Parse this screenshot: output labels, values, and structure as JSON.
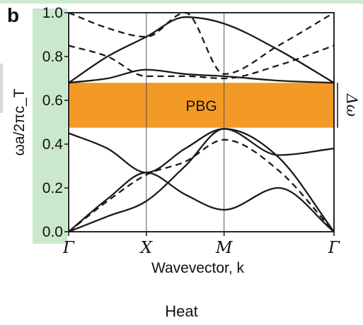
{
  "panel_label": "b",
  "caption": "Heat",
  "colors": {
    "bandgap": "#f39a26",
    "axis_bg": "#c9e8cc",
    "curves": "#1a1a1a"
  },
  "chart_data": {
    "type": "line",
    "title": "",
    "xlabel": "Wavevector, k",
    "ylabel": "ωa/2πc_T",
    "ylim": [
      0.0,
      1.0
    ],
    "yticks": [
      "0.0",
      "0.2",
      "0.4",
      "0.6",
      "0.8",
      "1.0"
    ],
    "k_points": [
      "Γ",
      "X",
      "M",
      "Γ"
    ],
    "k_positions": [
      0,
      1,
      2,
      3.4142
    ],
    "grid": "vertical lines at X and M",
    "band_gap": {
      "label": "PBG",
      "range": [
        0.475,
        0.68
      ],
      "side_label": "Δω"
    },
    "series": [
      {
        "style": "solid",
        "x": [
          0,
          0.5,
          1,
          1.5,
          2,
          2.7,
          3.4142
        ],
        "y": [
          0.0,
          0.07,
          0.14,
          0.3,
          0.47,
          0.34,
          0.0
        ]
      },
      {
        "style": "solid",
        "x": [
          0,
          0.5,
          1,
          1.5,
          2,
          2.7,
          3.4142
        ],
        "y": [
          0.0,
          0.15,
          0.27,
          0.17,
          0.1,
          0.2,
          0.0
        ]
      },
      {
        "style": "solid",
        "x": [
          0,
          0.5,
          1,
          1.5,
          2,
          2.7,
          3.4142
        ],
        "y": [
          0.45,
          0.38,
          0.27,
          0.38,
          0.47,
          0.35,
          0.38
        ]
      },
      {
        "style": "solid",
        "x": [
          0,
          0.5,
          1,
          1.5,
          2,
          2.7,
          3.4142
        ],
        "y": [
          0.68,
          0.7,
          0.74,
          0.72,
          0.71,
          0.69,
          0.68
        ]
      },
      {
        "style": "solid",
        "x": [
          0,
          0.5,
          1,
          1.5,
          2,
          2.7,
          3.4142
        ],
        "y": [
          0.68,
          0.8,
          0.89,
          0.98,
          0.95,
          0.83,
          0.68
        ]
      },
      {
        "style": "dashed",
        "x": [
          0,
          0.5,
          1,
          1.5,
          2,
          2.7,
          3.4142
        ],
        "y": [
          0.0,
          0.14,
          0.26,
          0.32,
          0.42,
          0.28,
          0.0
        ]
      },
      {
        "style": "dashed",
        "x": [
          0,
          0.5,
          1,
          1.5,
          2,
          2.7,
          3.4142
        ],
        "y": [
          0.85,
          0.8,
          0.71,
          0.71,
          0.7,
          0.76,
          0.85
        ]
      },
      {
        "style": "dashed",
        "x": [
          0,
          0.5,
          1,
          1.5,
          2,
          2.7,
          3.4142
        ],
        "y": [
          1.0,
          0.93,
          0.89,
          1.0,
          0.72,
          0.85,
          1.0
        ]
      }
    ]
  }
}
